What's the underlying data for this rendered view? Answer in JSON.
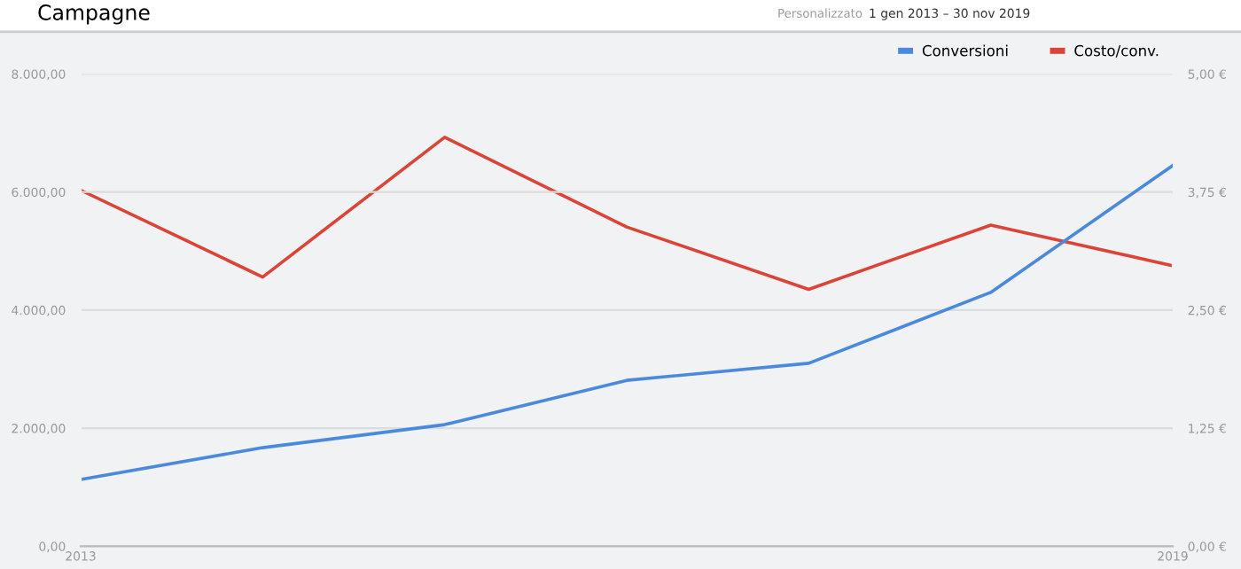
{
  "chart_data": {
    "type": "line",
    "title": "Campagne",
    "annotations": [
      "Personalizzato",
      "1 gen 2013 – 30 nov 2019"
    ],
    "x": [
      2013,
      2014,
      2015,
      2016,
      2017,
      2018,
      2019
    ],
    "series": [
      {
        "name": "Conversioni",
        "color": "#4a89dc",
        "values": [
          1130,
          1670,
          2060,
          2810,
          3100,
          4300,
          6450
        ]
      },
      {
        "name": "Costo/conv.",
        "color": "#db4437",
        "axis": "y2",
        "values": [
          3.77,
          2.85,
          4.33,
          3.38,
          2.72,
          3.4,
          2.97
        ]
      }
    ],
    "xlim": [
      2013,
      2019
    ],
    "xticks": [
      2013,
      2019
    ],
    "ylim": [
      0,
      8000
    ],
    "yticks": [
      {
        "value": 0,
        "label": "0,00"
      },
      {
        "value": 2000,
        "label": "2.000,00"
      },
      {
        "value": 4000,
        "label": "4.000,00"
      },
      {
        "value": 6000,
        "label": "6.000,00"
      },
      {
        "value": 8000,
        "label": "8.000,00"
      }
    ],
    "y2lim": [
      0,
      5
    ],
    "y2ticks": [
      {
        "value": 0,
        "label": "0,00 €"
      },
      {
        "value": 1.25,
        "label": "1,25 €"
      },
      {
        "value": 2.5,
        "label": "2,50 €"
      },
      {
        "value": 3.75,
        "label": "3,75 €"
      },
      {
        "value": 5,
        "label": "5,00 €"
      }
    ],
    "grid": "y",
    "legend": "top right",
    "marker": "none",
    "line_style": "solid"
  }
}
